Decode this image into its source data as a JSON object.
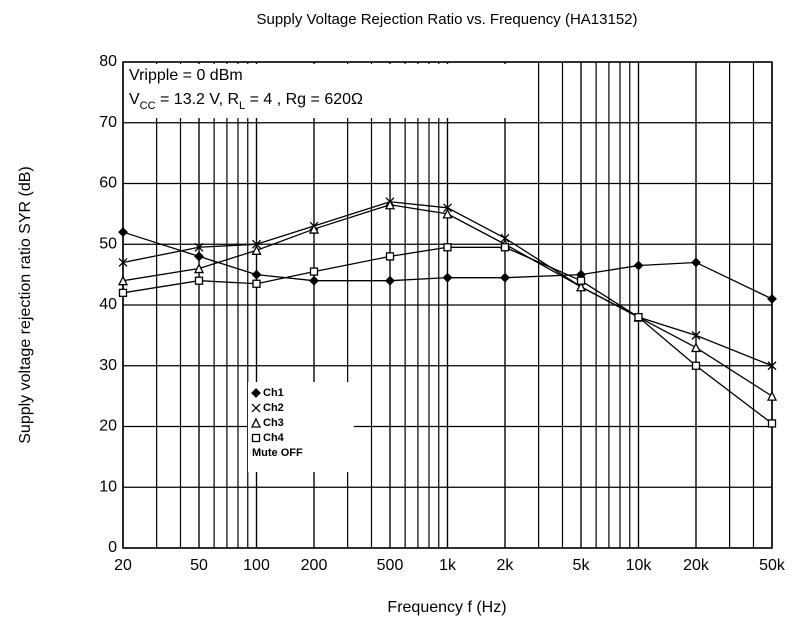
{
  "chart_data": {
    "type": "line",
    "title": "Supply Voltage Rejection Ratio vs. Frequency (HA13152)",
    "x_label": "Frequency  f (Hz)",
    "y_label": "Supply voltage rejection ratio  SYR (dB)",
    "annotations": [
      [
        {
          "text": "Vripple = 0 dBm"
        }
      ],
      [
        {
          "text": "V"
        },
        {
          "text": "CC",
          "sub": true
        },
        {
          "text": " = 13.2 V, R"
        },
        {
          "text": "L",
          "sub": true
        },
        {
          "text": " = 4    , Rg = 620Ω"
        }
      ]
    ],
    "legend_note": "Mute OFF",
    "x": [
      20,
      50,
      100,
      200,
      500,
      1000,
      2000,
      5000,
      10000,
      20000,
      50000
    ],
    "xscale": "log",
    "xlim": [
      20,
      50000
    ],
    "xticks": [
      20,
      50,
      100,
      200,
      500,
      {
        "value": 1000,
        "label": "1k"
      },
      {
        "value": 2000,
        "label": "2k"
      },
      {
        "value": 5000,
        "label": "5k"
      },
      {
        "value": 10000,
        "label": "10k"
      },
      {
        "value": 20000,
        "label": "20k"
      },
      {
        "value": 50000,
        "label": "50k"
      }
    ],
    "ylim": [
      0,
      80
    ],
    "yticks": [
      0,
      10,
      20,
      30,
      40,
      50,
      60,
      70,
      80
    ],
    "grid": true,
    "minor_grid": true,
    "series": [
      {
        "name": "Ch1",
        "color": "#000000",
        "marker": "diamond",
        "values": [
          52,
          48,
          45,
          44,
          44,
          44.5,
          44.5,
          45,
          46.5,
          47,
          41
        ]
      },
      {
        "name": "Ch2",
        "color": "#000000",
        "marker": "x",
        "values": [
          47,
          49.5,
          50,
          53,
          57,
          56,
          51,
          43,
          38,
          35,
          30
        ]
      },
      {
        "name": "Ch3",
        "color": "#000000",
        "marker": "triangle",
        "values": [
          44,
          46,
          49,
          52.5,
          56.5,
          55,
          50,
          43,
          38,
          33,
          25
        ]
      },
      {
        "name": "Ch4",
        "color": "#000000",
        "marker": "square",
        "values": [
          42,
          44,
          43.5,
          45.5,
          48,
          49.5,
          49.5,
          44,
          38,
          30,
          20.5
        ]
      }
    ]
  }
}
